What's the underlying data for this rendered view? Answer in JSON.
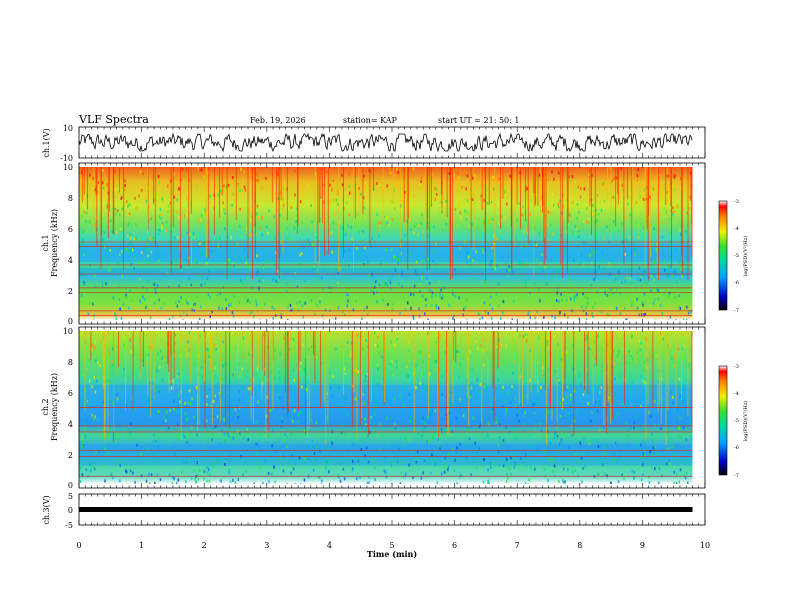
{
  "header": {
    "title": "VLF Spectra",
    "date": "Feb. 19, 2026",
    "station": "station= KAP",
    "start": "start  UT  =   21: 50: 1"
  },
  "chart_data": {
    "type": "heatmap",
    "xlabel": "Time  (min)",
    "xlim": [
      0,
      10
    ],
    "xticks": [
      "0",
      "1",
      "2",
      "3",
      "4",
      "5",
      "6",
      "7",
      "8",
      "9",
      "10"
    ],
    "data_end_min": 9.8,
    "panels": [
      {
        "id": "ch1_waveform",
        "type": "line",
        "ylabel": "ch.1(V)",
        "ylim": [
          -10,
          10
        ],
        "yticks": [
          "10",
          "-10"
        ]
      },
      {
        "id": "ch1_spectrogram",
        "type": "heatmap",
        "ylabel_top": "ch.1",
        "ylabel": "Frequency  (kHz)",
        "ylim": [
          0,
          10
        ],
        "yticks": [
          "0",
          "2",
          "4",
          "6",
          "8",
          "10"
        ],
        "colorbar": {
          "label": "log(PSD)(V²/Hz)",
          "range": [
            -7,
            -3
          ],
          "ticks": [
            "-3",
            "-4",
            "-5",
            "-6",
            "-7"
          ]
        },
        "quiet_bands_khz": [
          [
            3.8,
            5.0
          ],
          [
            2.9,
            3.4
          ]
        ],
        "tone_lines_khz": [
          5.1,
          4.8,
          3.6,
          3.0,
          2.1,
          1.8,
          0.6,
          0.3
        ]
      },
      {
        "id": "ch2_spectrogram",
        "type": "heatmap",
        "ylabel_top": "ch.2",
        "ylabel": "Frequency  (kHz)",
        "ylim": [
          0,
          10
        ],
        "yticks": [
          "0",
          "2",
          "4",
          "6",
          "8",
          "10"
        ],
        "colorbar": {
          "label": "log(PSD)(V²/Hz)",
          "range": [
            -7,
            -3
          ],
          "ticks": [
            "-3",
            "-4",
            "-5",
            "-6",
            "-7"
          ]
        },
        "quiet_bands_khz": [
          [
            3.8,
            6.5
          ],
          [
            1.2,
            2.6
          ]
        ],
        "tone_lines_khz": [
          5.0,
          3.8,
          3.4,
          2.2,
          1.8,
          0.5
        ]
      },
      {
        "id": "ch3_waveform",
        "type": "line",
        "ylabel": "ch.3(V)",
        "ylim": [
          -5,
          5
        ],
        "yticks": [
          "5",
          "0",
          "-5"
        ],
        "level_v": 0
      }
    ]
  }
}
